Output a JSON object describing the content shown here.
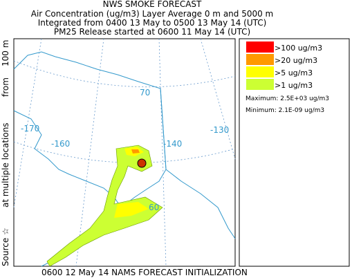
{
  "header": {
    "title": "NWS SMOKE FORECAST",
    "lines": [
      "Air Concentration (ug/m3) Layer Average    0 m and  5000 m",
      "Integrated from 0400 13 May to 0500 13 May 14 (UTC)",
      "PM25 Release started at 0600 11 May 14 (UTC)"
    ]
  },
  "side_label": [
    "Source ☆",
    "at multiple locations",
    "from",
    "100 m"
  ],
  "footer": "0600 12 May 14 NAMS FORECAST INITIALIZATION",
  "map": {
    "labels": [
      "-170",
      "-160",
      "-140",
      "-130",
      "70",
      "60"
    ]
  },
  "legend": {
    "items": [
      {
        "label": ">100 ug/m3",
        "color": "#ff0000"
      },
      {
        "label": ">20 ug/m3",
        "color": "#ff9900"
      },
      {
        "label": ">5 ug/m3",
        "color": "#ffff00"
      },
      {
        "label": ">1 ug/m3",
        "color": "#ccff33"
      }
    ],
    "maximum": "Maximum: 2.5E+03 ug/m3",
    "minimum": "Minimum: 2.1E-09 ug/m3"
  }
}
